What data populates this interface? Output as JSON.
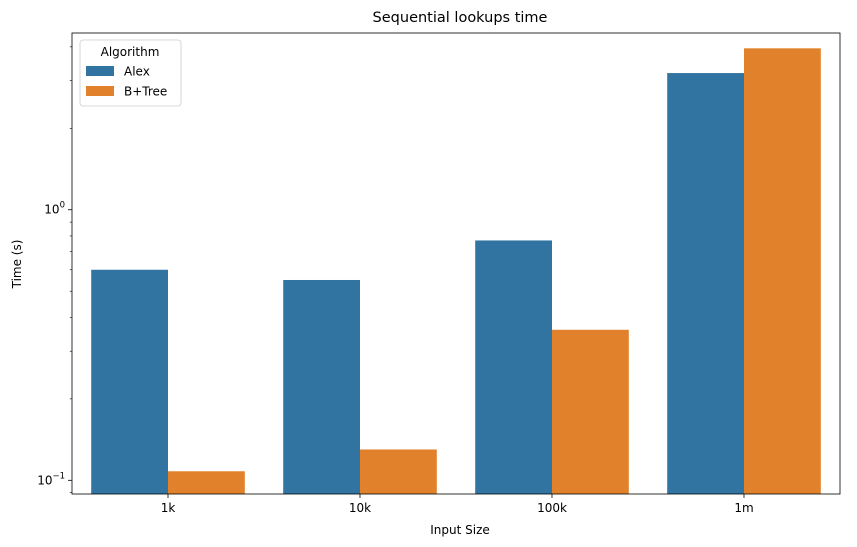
{
  "chart_data": {
    "type": "bar",
    "title": "Sequential lookups time",
    "xlabel": "Input Size",
    "ylabel": "Time (s)",
    "yscale": "log",
    "ylim": [
      0.089,
      4.5
    ],
    "categories": [
      "1k",
      "10k",
      "100k",
      "1m"
    ],
    "y_ticks": [
      {
        "value": 0.1,
        "base": "10",
        "exp": "−1"
      },
      {
        "value": 1,
        "base": "10",
        "exp": "0"
      }
    ],
    "legend": {
      "title": "Algorithm",
      "position": "top-left"
    },
    "grid": false,
    "series": [
      {
        "name": "Alex",
        "color": "#3274a1",
        "values": [
          0.6,
          0.55,
          0.77,
          3.2
        ]
      },
      {
        "name": "B+Tree",
        "color": "#e1812c",
        "values": [
          0.108,
          0.13,
          0.36,
          3.95
        ]
      }
    ]
  }
}
